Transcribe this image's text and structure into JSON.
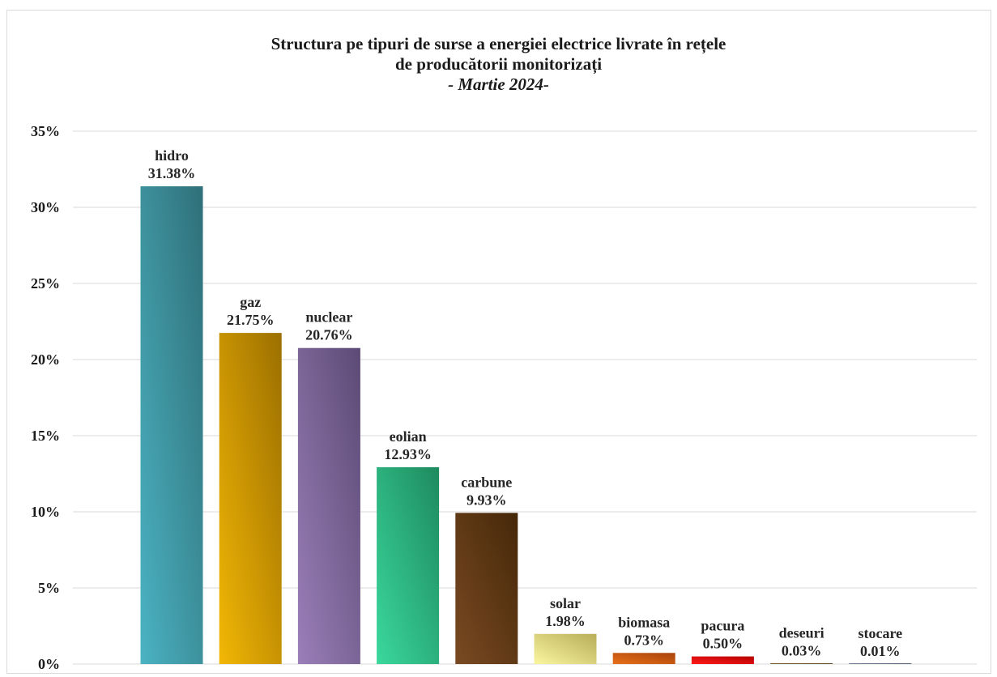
{
  "chart_data": {
    "type": "bar",
    "title_lines": [
      "Structura pe tipuri de surse a energiei electrice livrate în rețele",
      "de producătorii monitorizați",
      "- Martie 2024-"
    ],
    "categories": [
      "hidro",
      "gaz",
      "nuclear",
      "eolian",
      "carbune",
      "solar",
      "biomasa",
      "pacura",
      "deseuri",
      "stocare"
    ],
    "values": [
      31.38,
      21.75,
      20.76,
      12.93,
      9.93,
      1.98,
      0.73,
      0.5,
      0.03,
      0.01
    ],
    "value_labels": [
      "31.38%",
      "21.75%",
      "20.76%",
      "12.93%",
      "9.93%",
      "1.98%",
      "0.73%",
      "0.50%",
      "0.03%",
      "0.01%"
    ],
    "colors": [
      [
        "#4bb3c2",
        "#2f6f78"
      ],
      [
        "#f2b705",
        "#9c6f00"
      ],
      [
        "#9a7fb8",
        "#5c4a75"
      ],
      [
        "#3ad89c",
        "#1e8a5e"
      ],
      [
        "#7a4a22",
        "#452809"
      ],
      [
        "#faf6a0",
        "#b8ad5a"
      ],
      [
        "#e8701a",
        "#a8430a"
      ],
      [
        "#ff1a1a",
        "#b50000"
      ],
      [
        "#8a6a3a",
        "#5a4020"
      ],
      [
        "#7a8fa8",
        "#4a5a70"
      ]
    ],
    "y_ticks": [
      "0%",
      "5%",
      "10%",
      "15%",
      "20%",
      "25%",
      "30%",
      "35%"
    ],
    "ylim": [
      0,
      35
    ],
    "grid": true,
    "xlabel": "",
    "ylabel": ""
  }
}
